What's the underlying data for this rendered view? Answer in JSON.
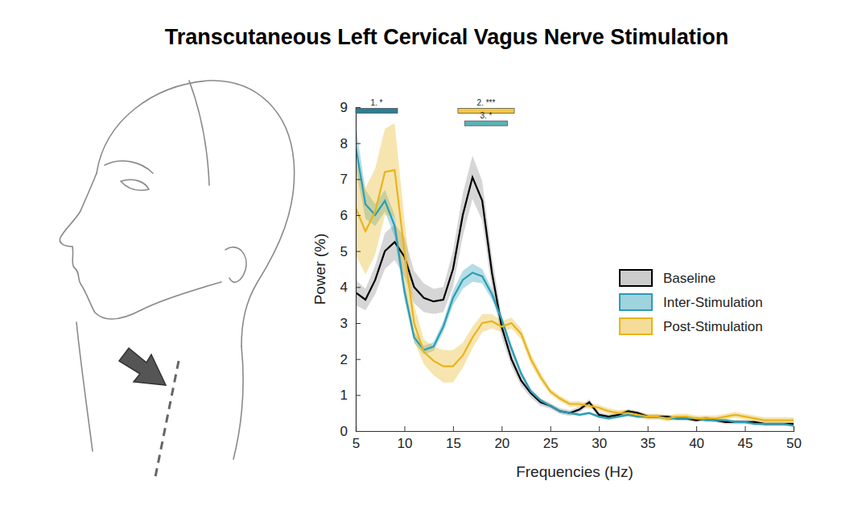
{
  "chart_data": {
    "type": "line",
    "title": "Transcutaneous Left Cervical Vagus Nerve Stimulation",
    "x_label": "Frequencies (Hz)",
    "y_label": "Power (%)",
    "x": [
      5,
      6,
      7,
      8,
      9,
      10,
      11,
      12,
      13,
      14,
      15,
      16,
      17,
      18,
      19,
      20,
      21,
      22,
      23,
      24,
      25,
      26,
      27,
      28,
      29,
      30,
      31,
      32,
      33,
      34,
      35,
      36,
      37,
      38,
      39,
      40,
      41,
      42,
      43,
      44,
      45,
      46,
      47,
      48,
      49,
      50
    ],
    "xlim": [
      5,
      50
    ],
    "xticks": [
      5,
      10,
      15,
      20,
      25,
      30,
      35,
      40,
      45,
      50
    ],
    "ylim": [
      0,
      9
    ],
    "yticks": [
      0,
      1,
      2,
      3,
      4,
      5,
      6,
      7,
      8,
      9
    ],
    "legend": "right",
    "series": [
      {
        "name": "Baseline",
        "color": "#000000",
        "values": [
          3.85,
          3.65,
          4.2,
          5.0,
          5.25,
          4.85,
          4.0,
          3.7,
          3.6,
          3.65,
          4.5,
          6.0,
          7.05,
          6.4,
          4.4,
          2.9,
          2.0,
          1.4,
          1.05,
          0.8,
          0.7,
          0.55,
          0.5,
          0.6,
          0.8,
          0.45,
          0.4,
          0.45,
          0.55,
          0.5,
          0.4,
          0.4,
          0.4,
          0.35,
          0.35,
          0.3,
          0.35,
          0.3,
          0.25,
          0.25,
          0.25,
          0.25,
          0.2,
          0.2,
          0.2,
          0.2
        ],
        "error": [
          0.35,
          0.3,
          0.4,
          0.5,
          0.5,
          0.55,
          0.45,
          0.4,
          0.35,
          0.35,
          0.5,
          0.6,
          0.6,
          0.55,
          0.45,
          0.3,
          0.2,
          0.15,
          0.12,
          0.1,
          0.08,
          0.08,
          0.08,
          0.08,
          0.08,
          0.08,
          0.06,
          0.06,
          0.06,
          0.06,
          0.06,
          0.06,
          0.06,
          0.06,
          0.06,
          0.06,
          0.06,
          0.06,
          0.06,
          0.06,
          0.06,
          0.06,
          0.06,
          0.06,
          0.06,
          0.06
        ]
      },
      {
        "name": "Inter-Stimulation",
        "color": "#2a9db5",
        "values": [
          7.9,
          6.3,
          6.0,
          6.4,
          5.7,
          3.9,
          2.6,
          2.25,
          2.35,
          2.9,
          3.7,
          4.2,
          4.4,
          4.3,
          3.8,
          3.1,
          2.3,
          1.6,
          1.1,
          0.85,
          0.7,
          0.55,
          0.5,
          0.45,
          0.5,
          0.4,
          0.35,
          0.4,
          0.45,
          0.4,
          0.4,
          0.4,
          0.35,
          0.35,
          0.35,
          0.35,
          0.3,
          0.3,
          0.3,
          0.25,
          0.25,
          0.2,
          0.2,
          0.2,
          0.2,
          0.15
        ],
        "error": [
          0.6,
          0.4,
          0.3,
          0.3,
          0.3,
          0.25,
          0.15,
          0.12,
          0.12,
          0.15,
          0.2,
          0.25,
          0.25,
          0.2,
          0.15,
          0.12,
          0.1,
          0.08,
          0.06,
          0.05,
          0.04,
          0.04,
          0.04,
          0.04,
          0.04,
          0.04,
          0.04,
          0.04,
          0.04,
          0.04,
          0.04,
          0.04,
          0.04,
          0.04,
          0.04,
          0.04,
          0.04,
          0.04,
          0.04,
          0.04,
          0.04,
          0.04,
          0.04,
          0.04,
          0.04,
          0.04
        ]
      },
      {
        "name": "Post-Stimulation",
        "color": "#e8b41c",
        "values": [
          6.2,
          5.55,
          6.1,
          7.2,
          7.25,
          5.0,
          3.0,
          2.2,
          1.95,
          1.8,
          1.8,
          2.1,
          2.6,
          3.0,
          3.05,
          2.9,
          3.0,
          2.7,
          2.0,
          1.5,
          1.1,
          0.9,
          0.75,
          0.75,
          0.7,
          0.65,
          0.55,
          0.5,
          0.5,
          0.45,
          0.4,
          0.4,
          0.35,
          0.4,
          0.4,
          0.35,
          0.35,
          0.35,
          0.4,
          0.45,
          0.4,
          0.35,
          0.3,
          0.3,
          0.3,
          0.3
        ],
        "error": [
          1.3,
          1.2,
          1.2,
          1.2,
          1.3,
          0.9,
          0.5,
          0.35,
          0.4,
          0.45,
          0.45,
          0.35,
          0.3,
          0.25,
          0.2,
          0.15,
          0.15,
          0.15,
          0.15,
          0.12,
          0.08,
          0.08,
          0.08,
          0.08,
          0.08,
          0.08,
          0.08,
          0.08,
          0.08,
          0.08,
          0.08,
          0.08,
          0.08,
          0.08,
          0.08,
          0.08,
          0.08,
          0.08,
          0.08,
          0.08,
          0.08,
          0.08,
          0.08,
          0.08,
          0.08,
          0.08
        ]
      }
    ],
    "annotations": [
      {
        "text": "1. *",
        "x": [
          5,
          9.3
        ],
        "y": 8.9,
        "color": "#2a7f96"
      },
      {
        "text": "2. ***",
        "x": [
          15.5,
          21.3
        ],
        "y": 8.9,
        "color": "#f5c842"
      },
      {
        "text": "3. *",
        "x": [
          16.2,
          20.6
        ],
        "y": 8.55,
        "color": "#5ab3b8"
      }
    ]
  }
}
